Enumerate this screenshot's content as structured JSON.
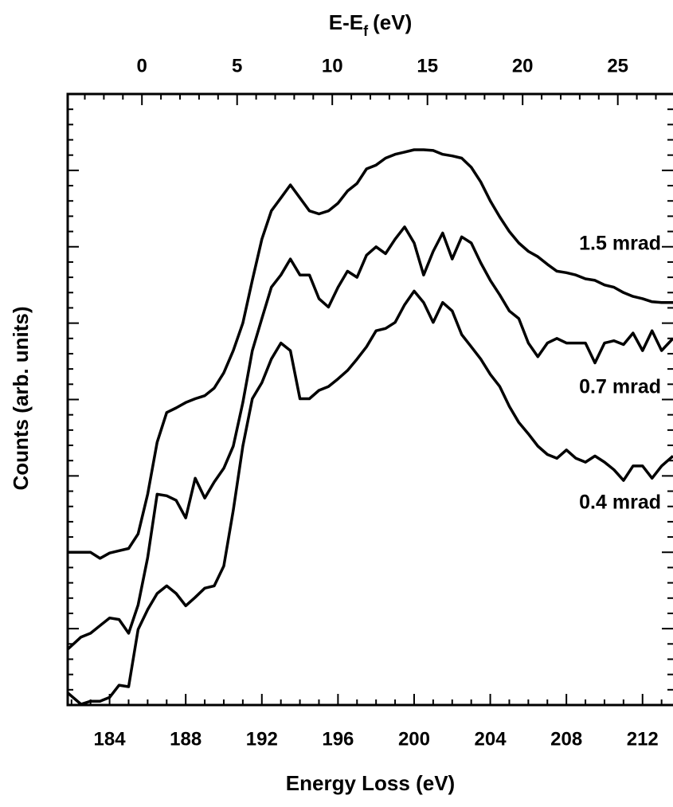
{
  "chart_data": {
    "type": "line",
    "xlabel": "Energy Loss (eV)",
    "ylabel": "Counts (arb. units)",
    "x2label": [
      "E-E",
      "f",
      "(eV)"
    ],
    "xlim": [
      181.8,
      213.6
    ],
    "xticks": [
      184,
      188,
      192,
      196,
      200,
      204,
      208,
      212
    ],
    "x2lim": [
      -3.9,
      27.9
    ],
    "x2ticks": [
      0,
      5,
      10,
      15,
      20,
      25
    ],
    "ylim": [
      0,
      8
    ],
    "yticks": [
      0,
      1,
      2,
      3,
      4,
      5,
      6,
      7,
      8
    ],
    "x": [
      181.8,
      182.5,
      183,
      183.5,
      184,
      184.5,
      185,
      185.5,
      186,
      186.5,
      187,
      187.5,
      188,
      188.5,
      189,
      189.5,
      190,
      190.5,
      191,
      191.5,
      192,
      192.5,
      193,
      193.5,
      194,
      194.5,
      195,
      195.5,
      196,
      196.5,
      197,
      197.5,
      198,
      198.5,
      199,
      199.5,
      200,
      200.5,
      201,
      201.5,
      202,
      202.5,
      203,
      203.5,
      204,
      204.5,
      205,
      205.5,
      206,
      206.5,
      207,
      207.5,
      208,
      208.5,
      209,
      209.5,
      210,
      210.5,
      211,
      211.5,
      212,
      212.5,
      213,
      213.6
    ],
    "series": [
      {
        "name": "1.5 mrad",
        "color": "#000000",
        "values": [
          2.0,
          2.0,
          2.0,
          1.92,
          1.99,
          2.02,
          2.05,
          2.24,
          2.76,
          3.44,
          3.83,
          3.89,
          3.96,
          4.01,
          4.05,
          4.15,
          4.35,
          4.64,
          5.0,
          5.56,
          6.1,
          6.47,
          6.64,
          6.81,
          6.64,
          6.47,
          6.43,
          6.47,
          6.57,
          6.73,
          6.83,
          7.02,
          7.07,
          7.16,
          7.21,
          7.24,
          7.27,
          7.27,
          7.26,
          7.21,
          7.19,
          7.16,
          7.04,
          6.85,
          6.6,
          6.39,
          6.2,
          6.05,
          5.94,
          5.87,
          5.77,
          5.68,
          5.66,
          5.63,
          5.58,
          5.56,
          5.5,
          5.47,
          5.4,
          5.35,
          5.32,
          5.28,
          5.27,
          5.27
        ]
      },
      {
        "name": "0.7 mrad",
        "color": "#000000",
        "values": [
          0.73,
          0.89,
          0.94,
          1.04,
          1.14,
          1.12,
          0.94,
          1.31,
          1.93,
          2.76,
          2.74,
          2.68,
          2.45,
          2.97,
          2.71,
          2.92,
          3.1,
          3.39,
          3.96,
          4.64,
          5.06,
          5.47,
          5.63,
          5.84,
          5.63,
          5.63,
          5.32,
          5.21,
          5.47,
          5.68,
          5.6,
          5.89,
          6.0,
          5.91,
          6.1,
          6.26,
          6.05,
          5.63,
          5.94,
          6.18,
          5.84,
          6.13,
          6.05,
          5.79,
          5.56,
          5.37,
          5.16,
          5.06,
          4.74,
          4.56,
          4.74,
          4.8,
          4.74,
          4.74,
          4.74,
          4.48,
          4.74,
          4.77,
          4.72,
          4.87,
          4.64,
          4.9,
          4.64,
          4.8
        ]
      },
      {
        "name": "0.4 mrad",
        "color": "#000000",
        "values": [
          0.16,
          0.01,
          0.05,
          0.05,
          0.1,
          0.26,
          0.24,
          0.99,
          1.25,
          1.46,
          1.56,
          1.46,
          1.3,
          1.41,
          1.53,
          1.56,
          1.82,
          2.55,
          3.39,
          4.01,
          4.22,
          4.53,
          4.74,
          4.64,
          4.01,
          4.01,
          4.12,
          4.17,
          4.27,
          4.38,
          4.53,
          4.69,
          4.9,
          4.93,
          5.01,
          5.24,
          5.42,
          5.27,
          5.01,
          5.27,
          5.16,
          4.85,
          4.69,
          4.53,
          4.33,
          4.17,
          3.91,
          3.7,
          3.55,
          3.39,
          3.28,
          3.23,
          3.34,
          3.23,
          3.18,
          3.26,
          3.18,
          3.08,
          2.94,
          3.13,
          3.13,
          2.97,
          3.13,
          3.26
        ]
      }
    ]
  }
}
